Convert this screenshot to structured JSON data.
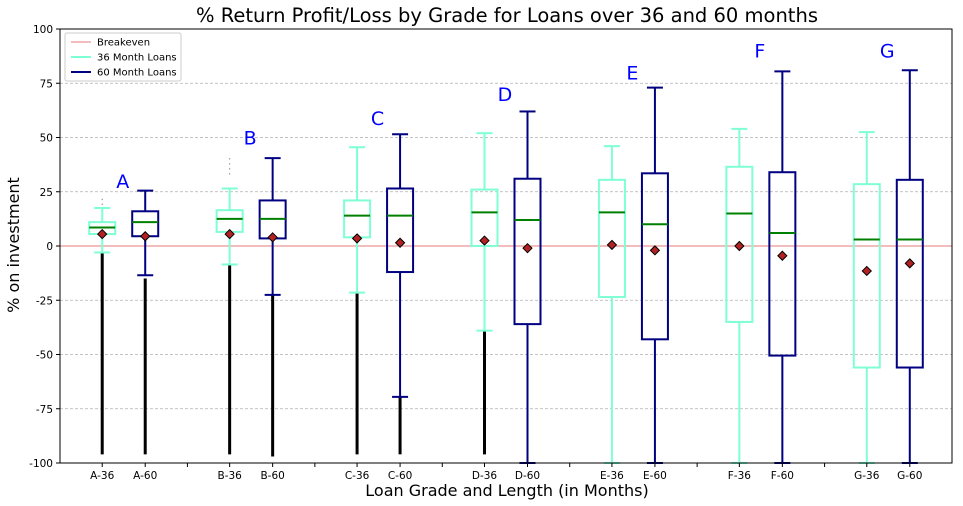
{
  "chart_data": {
    "type": "box",
    "title": "% Return Profit/Loss by Grade for Loans over 36 and 60 months",
    "xlabel": "Loan Grade and Length (in Months)",
    "ylabel": "% on investment",
    "ylim": [
      -100,
      100
    ],
    "yticks": [
      -100,
      -75,
      -50,
      -25,
      0,
      25,
      50,
      75,
      100
    ],
    "grid": "horizontal dashed",
    "legend_position": "top-left",
    "legend": [
      {
        "label": "Breakeven",
        "color": "#e87b7b"
      },
      {
        "label": "36 Month Loans",
        "color": "#7fffd4"
      },
      {
        "label": "60 Month Loans",
        "color": "#000080"
      }
    ],
    "breakeven_value": 0,
    "colors": {
      "term36": "#7fffd4",
      "term60": "#000080",
      "median": "#008000",
      "mean_fill": "#b22222",
      "breakeven": "#e87b7b",
      "grade_label": "#0000ff"
    },
    "grades": [
      {
        "label": "A",
        "label_y": 30,
        "boxes": [
          {
            "label": "A-36",
            "term": "36",
            "whisker_low": -3,
            "q1": 5.5,
            "median": 8.5,
            "q3": 11,
            "whisker_high": 17.5,
            "mean": 5.5,
            "outliers_low": [
              -3,
              -96
            ],
            "outliers_high": [
              19,
              23
            ]
          },
          {
            "label": "A-60",
            "term": "60",
            "whisker_low": -13.5,
            "q1": 4.5,
            "median": 11,
            "q3": 16,
            "whisker_high": 25.5,
            "mean": 4.5,
            "outliers_low": [
              -15,
              -96
            ],
            "outliers_high": []
          }
        ]
      },
      {
        "label": "B",
        "label_y": 50,
        "boxes": [
          {
            "label": "B-36",
            "term": "36",
            "whisker_low": -8.5,
            "q1": 6.5,
            "median": 12.5,
            "q3": 16.5,
            "whisker_high": 26.5,
            "mean": 5.5,
            "outliers_low": [
              -8.5,
              -96
            ],
            "outliers_high": [
              33,
              41
            ]
          },
          {
            "label": "B-60",
            "term": "60",
            "whisker_low": -22.5,
            "q1": 3.5,
            "median": 12.5,
            "q3": 21,
            "whisker_high": 40.5,
            "mean": 4,
            "outliers_low": [
              -22.5,
              -97
            ],
            "outliers_high": []
          }
        ]
      },
      {
        "label": "C",
        "label_y": 59,
        "boxes": [
          {
            "label": "C-36",
            "term": "36",
            "whisker_low": -21.5,
            "q1": 4,
            "median": 14,
            "q3": 21,
            "whisker_high": 45.5,
            "mean": 3.5,
            "outliers_low": [
              -21.5,
              -96
            ],
            "outliers_high": []
          },
          {
            "label": "C-60",
            "term": "60",
            "whisker_low": -69.5,
            "q1": -12,
            "median": 14,
            "q3": 26.5,
            "whisker_high": 51.5,
            "mean": 1.5,
            "outliers_low": [
              -69.5,
              -96
            ],
            "outliers_high": []
          }
        ]
      },
      {
        "label": "D",
        "label_y": 70,
        "boxes": [
          {
            "label": "D-36",
            "term": "36",
            "whisker_low": -39,
            "q1": 0,
            "median": 15.5,
            "q3": 26,
            "whisker_high": 52,
            "mean": 2.5,
            "outliers_low": [
              -39,
              -96
            ],
            "outliers_high": []
          },
          {
            "label": "D-60",
            "term": "60",
            "whisker_low": -100,
            "q1": -36,
            "median": 12,
            "q3": 31,
            "whisker_high": 62,
            "mean": -1,
            "outliers_low": [],
            "outliers_high": []
          }
        ]
      },
      {
        "label": "E",
        "label_y": 80,
        "boxes": [
          {
            "label": "E-36",
            "term": "36",
            "whisker_low": -100,
            "q1": -23.5,
            "median": 15.5,
            "q3": 30.5,
            "whisker_high": 46,
            "mean": 0.5,
            "outliers_low": [],
            "outliers_high": []
          },
          {
            "label": "E-60",
            "term": "60",
            "whisker_low": -100,
            "q1": -43,
            "median": 10,
            "q3": 33.5,
            "whisker_high": 73,
            "mean": -2,
            "outliers_low": [],
            "outliers_high": []
          }
        ]
      },
      {
        "label": "F",
        "label_y": 90,
        "boxes": [
          {
            "label": "F-36",
            "term": "36",
            "whisker_low": -100,
            "q1": -35,
            "median": 15,
            "q3": 36.5,
            "whisker_high": 54,
            "mean": 0,
            "outliers_low": [],
            "outliers_high": []
          },
          {
            "label": "F-60",
            "term": "60",
            "whisker_low": -100,
            "q1": -50.5,
            "median": 6,
            "q3": 34,
            "whisker_high": 80.5,
            "mean": -4.5,
            "outliers_low": [],
            "outliers_high": []
          }
        ]
      },
      {
        "label": "G",
        "label_y": 90,
        "boxes": [
          {
            "label": "G-36",
            "term": "36",
            "whisker_low": -100,
            "q1": -56,
            "median": 3,
            "q3": 28.5,
            "whisker_high": 52.5,
            "mean": -11.5,
            "outliers_low": [],
            "outliers_high": []
          },
          {
            "label": "G-60",
            "term": "60",
            "whisker_low": -100,
            "q1": -56,
            "median": 3,
            "q3": 30.5,
            "whisker_high": 81,
            "mean": -8,
            "outliers_low": [],
            "outliers_high": []
          }
        ]
      }
    ]
  }
}
